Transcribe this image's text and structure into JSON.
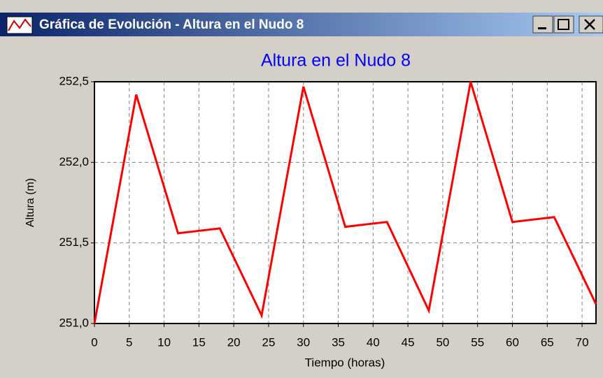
{
  "window": {
    "title": "Gráfica de Evolución - Altura en el Nudo 8"
  },
  "chart_data": {
    "type": "line",
    "title": "Altura en el Nudo 8",
    "x_label": "Tiempo (horas)",
    "y_label": "Altura (m)",
    "x": [
      0,
      6,
      12,
      18,
      24,
      30,
      36,
      42,
      48,
      54,
      60,
      66,
      72
    ],
    "values": [
      251.0,
      252.42,
      251.56,
      251.59,
      251.05,
      252.47,
      251.6,
      251.63,
      251.08,
      252.5,
      251.63,
      251.66,
      251.12
    ],
    "color": "#ff0000",
    "xlim": [
      0,
      72
    ],
    "xticks": [
      0,
      5,
      10,
      15,
      20,
      25,
      30,
      35,
      40,
      45,
      50,
      55,
      60,
      65,
      70
    ],
    "ylim": [
      251.0,
      252.5
    ],
    "yticks": [
      {
        "value": 251.0,
        "label": "251,0"
      },
      {
        "value": 251.5,
        "label": "251,5"
      },
      {
        "value": 252.0,
        "label": "252,0"
      },
      {
        "value": 252.5,
        "label": "252,5"
      }
    ],
    "grid": true
  }
}
